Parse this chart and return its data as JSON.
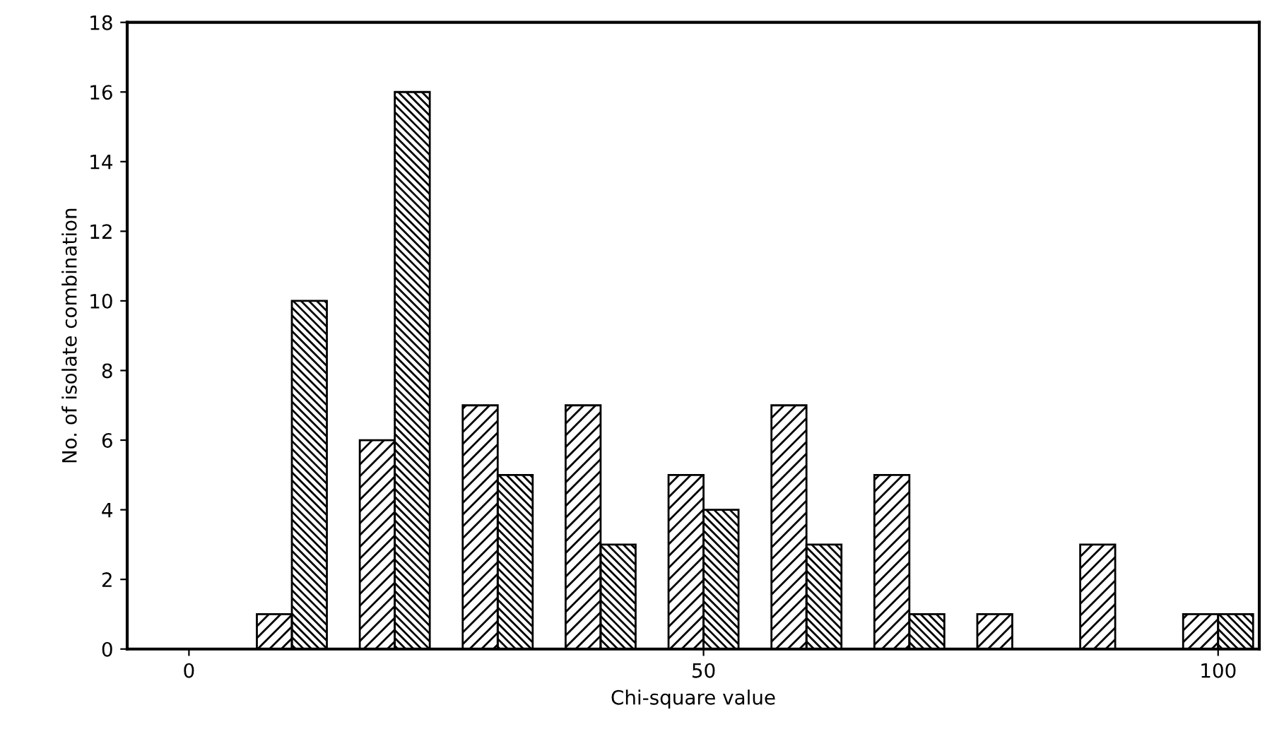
{
  "chart_data": {
    "type": "bar",
    "xlabel": "Chi-square value",
    "ylabel": "No. of isolate combination",
    "x": [
      10,
      20,
      30,
      40,
      50,
      60,
      70,
      80,
      90,
      100
    ],
    "series": [
      {
        "color": "#000000",
        "values": [
          1,
          6,
          7,
          7,
          5,
          7,
          5,
          1,
          3,
          1
        ]
      },
      {
        "color": "#000000",
        "values": [
          10,
          16,
          5,
          3,
          4,
          3,
          1,
          0,
          0,
          1
        ]
      }
    ],
    "xlim": [
      -6,
      104
    ],
    "xticks": [
      0,
      50,
      100
    ],
    "ylim": [
      0,
      18
    ],
    "yticks": [
      0,
      2,
      4,
      6,
      8,
      10,
      12,
      14,
      16,
      18
    ],
    "grid": false,
    "legend": false
  }
}
